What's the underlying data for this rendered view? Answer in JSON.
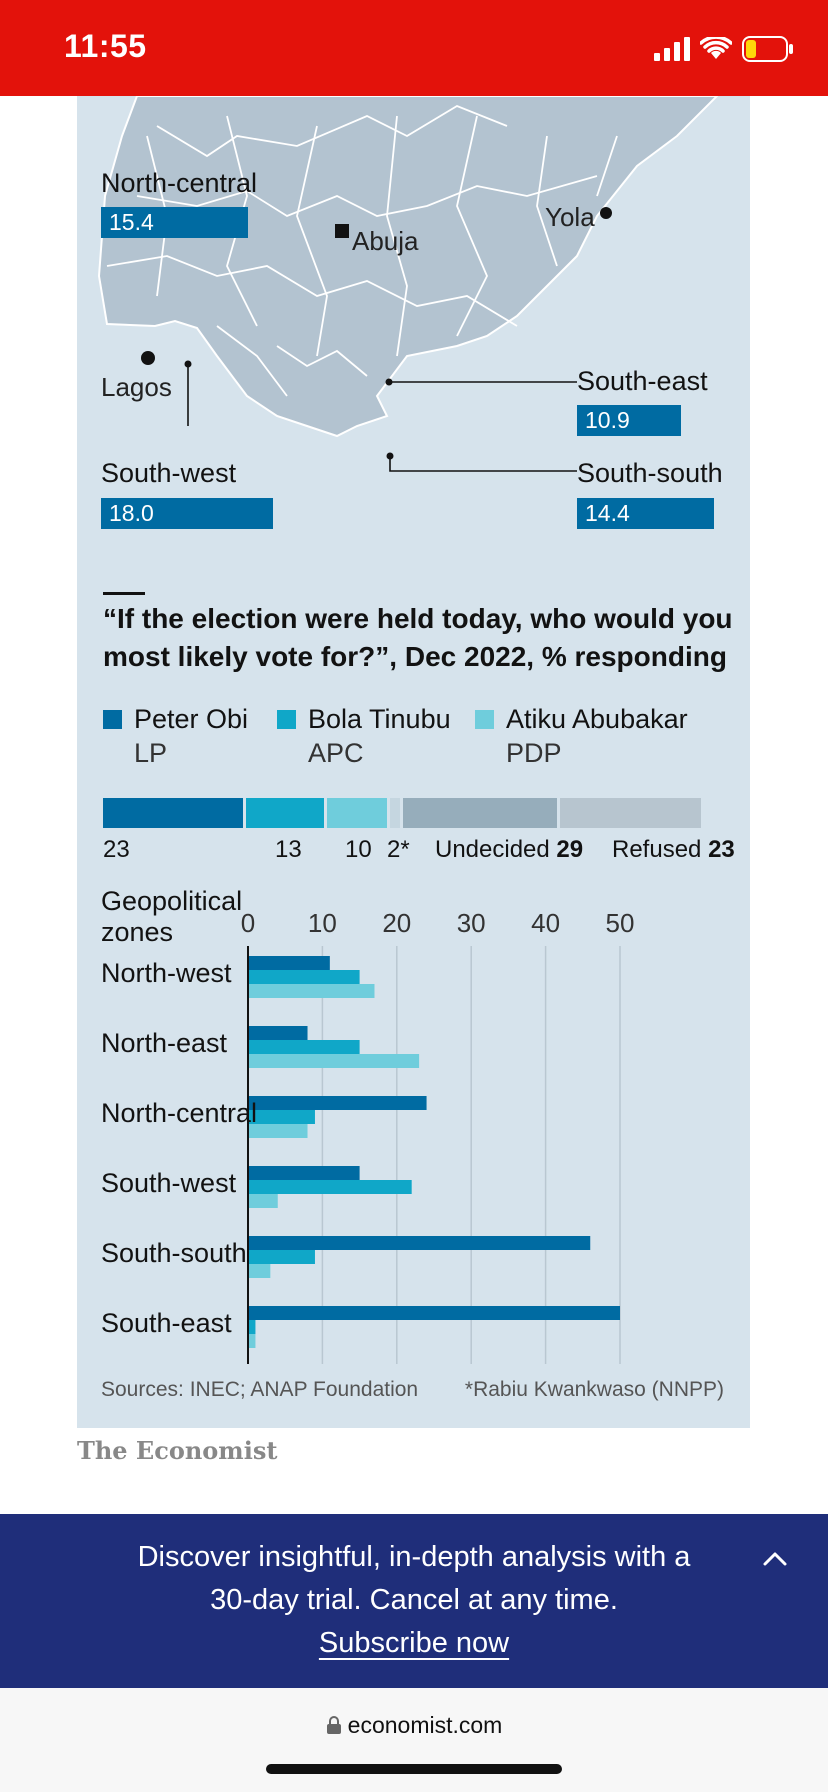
{
  "status": {
    "time": "11:55"
  },
  "map": {
    "zones": [
      {
        "id": "north-central",
        "label": "North-central",
        "value": 15.4
      },
      {
        "id": "south-east",
        "label": "South-east",
        "value": 10.9
      },
      {
        "id": "south-west",
        "label": "South-west",
        "value": 18.0
      },
      {
        "id": "south-south",
        "label": "South-south",
        "value": 14.4
      }
    ],
    "cities": {
      "abuja": "Abuja",
      "yola": "Yola",
      "lagos": "Lagos"
    },
    "value_labels": {
      "north_central": "15.4",
      "south_east": "10.9",
      "south_west": "18.0",
      "south_south": "14.4"
    }
  },
  "question": "“If the election were held today, who would you most likely vote for?”, Dec 2022, % responding",
  "legend": [
    {
      "name": "Peter Obi",
      "party": "LP",
      "color": "#006ba2"
    },
    {
      "name": "Bola Tinubu",
      "party": "APC",
      "color": "#10a7c8"
    },
    {
      "name": "Atiku Abubakar",
      "party": "PDP",
      "color": "#6fcddc"
    }
  ],
  "overall": {
    "labels": {
      "obi": "23",
      "tinubu": "13",
      "atiku": "10",
      "other": "2*",
      "undecided_word": "Undecided",
      "undecided_value": "29",
      "refused_word": "Refused",
      "refused_value": "23"
    },
    "colors": {
      "obi": "#006ba2",
      "tinubu": "#10a7c8",
      "atiku": "#6fcddc",
      "other": "#c5d6e0",
      "undecided": "#96adbb",
      "refused": "#b7c5cf"
    }
  },
  "geo_title_line1": "Geopolitical",
  "geo_title_line2": "zones",
  "chart_data": {
    "type": "bar",
    "orientation": "horizontal",
    "categories": [
      "North-west",
      "North-east",
      "North-central",
      "South-west",
      "South-south",
      "South-east"
    ],
    "series": [
      {
        "name": "Peter Obi",
        "color": "#006ba2",
        "values": [
          11,
          8,
          24,
          15,
          46,
          50
        ]
      },
      {
        "name": "Bola Tinubu",
        "color": "#10a7c8",
        "values": [
          15,
          15,
          9,
          22,
          9,
          1
        ]
      },
      {
        "name": "Atiku Abubakar",
        "color": "#6fcddc",
        "values": [
          17,
          23,
          8,
          4,
          3,
          1
        ]
      }
    ],
    "xticks": [
      "0",
      "10",
      "20",
      "30",
      "40",
      "50"
    ],
    "xlim": [
      0,
      50
    ],
    "grid": true
  },
  "sources": "Sources: INEC; ANAP Foundation",
  "footnote": "*Rabiu Kwankwaso (NNPP)",
  "brand": "The Economist",
  "promo": {
    "line1": "Discover insightful, in-depth analysis with a",
    "line2": "30-day trial. Cancel at any time.",
    "link": "Subscribe now"
  },
  "url": "economist.com"
}
